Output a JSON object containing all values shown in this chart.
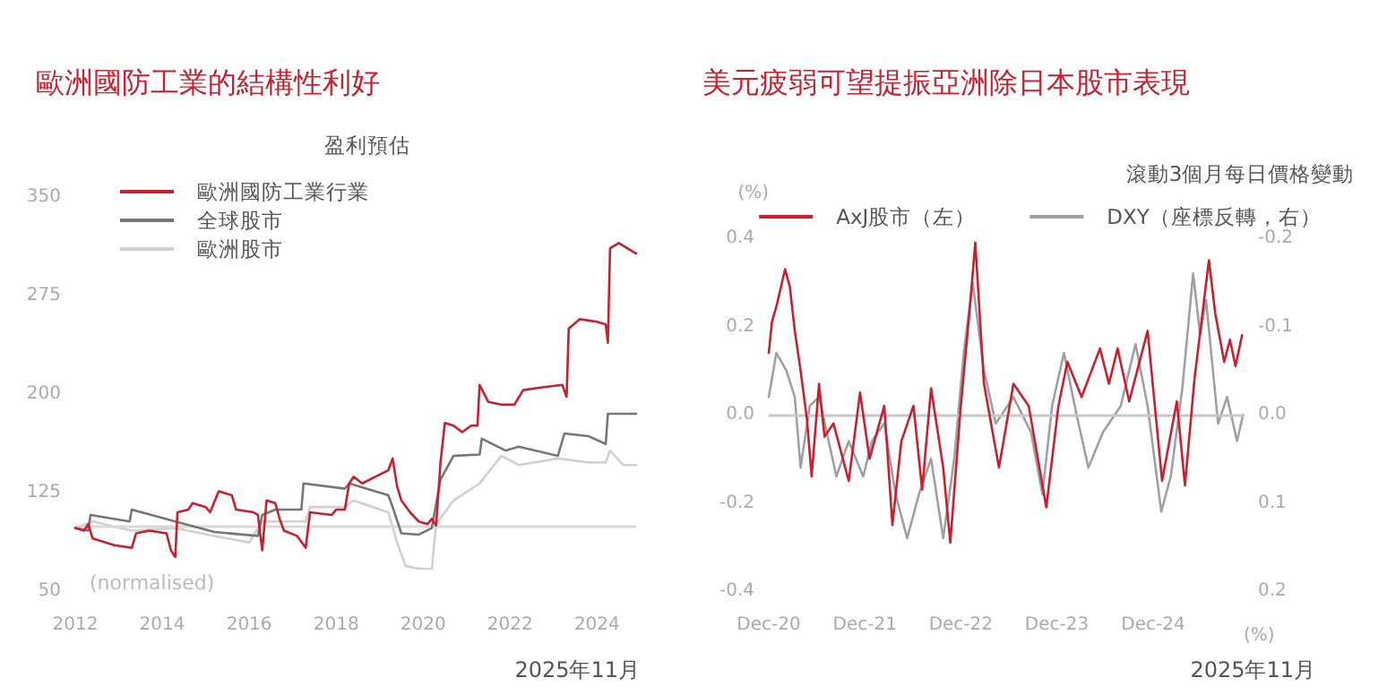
{
  "chart_data": [
    {
      "type": "line",
      "title": "歐洲國防工業的結構性利好",
      "subtitle": "盈利預估",
      "legend": "top left",
      "xlim": [
        2012,
        2024.9
      ],
      "xticks": [
        2012,
        2014,
        2016,
        2018,
        2020,
        2022,
        2024
      ],
      "ylim": [
        50,
        350
      ],
      "yticks": [
        50,
        125,
        200,
        275,
        350
      ],
      "ref_lines": [
        {
          "axis": "y",
          "value": 100,
          "color": "#d9d9d9"
        }
      ],
      "annotations": [
        "(normalised)",
        "2025年11月"
      ],
      "series": [
        {
          "name": "歐洲國防工業行業",
          "color": "#c8202f",
          "x": [
            2012.0,
            2012.2,
            2012.3,
            2012.4,
            2012.7,
            2012.9,
            2013.3,
            2013.4,
            2013.7,
            2014.1,
            2014.2,
            2014.3,
            2014.35,
            2014.6,
            2014.7,
            2015.0,
            2015.1,
            2015.3,
            2015.6,
            2015.7,
            2016.1,
            2016.2,
            2016.3,
            2016.4,
            2016.6,
            2016.7,
            2016.8,
            2017.1,
            2017.3,
            2017.4,
            2017.9,
            2018.0,
            2018.2,
            2018.3,
            2018.4,
            2018.6,
            2018.9,
            2019.2,
            2019.3,
            2019.4,
            2019.5,
            2019.7,
            2019.9,
            2020.1,
            2020.2,
            2020.3,
            2020.4,
            2020.5,
            2020.7,
            2020.9,
            2021.1,
            2021.25,
            2021.3,
            2021.5,
            2021.8,
            2022.1,
            2022.3,
            2022.7,
            2023.2,
            2023.3,
            2023.35,
            2023.6,
            2024.0,
            2024.2,
            2024.25,
            2024.3,
            2024.5,
            2024.9
          ],
          "values": [
            98,
            96,
            101,
            90,
            87,
            85,
            83,
            94,
            96,
            94,
            81,
            76,
            110,
            112,
            117,
            114,
            110,
            126,
            123,
            112,
            110,
            108,
            81,
            119,
            117,
            105,
            96,
            92,
            83,
            110,
            108,
            112,
            112,
            132,
            137,
            132,
            137,
            142,
            151,
            130,
            119,
            110,
            103,
            101,
            105,
            100,
            148,
            178,
            176,
            171,
            176,
            176,
            207,
            194,
            192,
            192,
            203,
            205,
            207,
            198,
            250,
            257,
            255,
            253,
            239,
            311,
            315,
            307
          ]
        },
        {
          "name": "全球股市",
          "color": "#767676",
          "x": [
            2012.0,
            2012.3,
            2012.35,
            2013.25,
            2013.3,
            2014.3,
            2015.2,
            2016.2,
            2016.3,
            2016.6,
            2017.2,
            2017.25,
            2018.2,
            2018.3,
            2019.2,
            2019.3,
            2019.5,
            2019.9,
            2020.2,
            2020.4,
            2020.7,
            2021.3,
            2021.35,
            2021.9,
            2022.2,
            2023.1,
            2023.25,
            2023.8,
            2024.2,
            2024.25,
            2024.9
          ],
          "values": [
            98,
            96,
            108,
            103,
            112,
            103,
            95,
            92,
            108,
            112,
            112,
            132,
            128,
            132,
            123,
            114,
            94,
            93,
            98,
            135,
            153,
            154,
            166,
            157,
            160,
            153,
            170,
            168,
            162,
            185,
            185
          ]
        },
        {
          "name": "歐洲股市",
          "color": "#d0d0d0",
          "x": [
            2012.0,
            2012.4,
            2013.3,
            2014.3,
            2015.2,
            2016.0,
            2016.3,
            2017.3,
            2017.4,
            2018.2,
            2018.4,
            2019.2,
            2019.4,
            2019.6,
            2019.9,
            2020.2,
            2020.3,
            2020.7,
            2021.3,
            2021.8,
            2022.2,
            2023.1,
            2023.8,
            2024.2,
            2024.3,
            2024.6,
            2024.9
          ],
          "values": [
            98,
            103,
            96,
            98,
            92,
            87,
            103,
            103,
            114,
            114,
            119,
            110,
            87,
            69,
            67,
            67,
            101,
            119,
            132,
            153,
            146,
            151,
            148,
            148,
            157,
            146,
            146
          ]
        }
      ]
    },
    {
      "type": "line",
      "title": "美元疲弱可望提振亞洲除日本股市表現",
      "subtitle": "滾動3個月每日價格變動",
      "legend": "top",
      "ylabel": "(%)",
      "y2label": "(%)",
      "xlim": [
        "2020-12-01",
        "2025-11-10"
      ],
      "xticks": [
        {
          "value": "2020-12-01",
          "label": "Dec-20"
        },
        {
          "value": "2021-12-01",
          "label": "Dec-21"
        },
        {
          "value": "2022-12-01",
          "label": "Dec-22"
        },
        {
          "value": "2023-12-01",
          "label": "Dec-23"
        },
        {
          "value": "2024-12-01",
          "label": "Dec-24"
        }
      ],
      "ylim": [
        -0.4,
        0.4
      ],
      "yticks": [
        -0.4,
        -0.2,
        {
          "value": 0,
          "label": "0.0"
        },
        0.2,
        0.4
      ],
      "y2lim": [
        0.2,
        -0.2
      ],
      "y2ticks": [
        -0.2,
        -0.1,
        {
          "value": 0,
          "label": "0.0"
        },
        0.1,
        0.2
      ],
      "ref_lines": [
        {
          "axis": "y",
          "value": 0,
          "color": "#c8c8c8"
        }
      ],
      "annotations": [
        "2025年11月"
      ],
      "series": [
        {
          "name": "AxJ股市（左）",
          "color": "#c8202f",
          "x": [
            "2020-12-01",
            "2020-12-13",
            "2021-01-01",
            "2021-02-01",
            "2021-02-19",
            "2021-03-10",
            "2021-04-01",
            "2021-04-25",
            "2021-05-13",
            "2021-06-10",
            "2021-07-01",
            "2021-08-04",
            "2021-10-01",
            "2021-11-13",
            "2021-12-19",
            "2022-02-13",
            "2022-03-16",
            "2022-04-19",
            "2022-06-04",
            "2022-07-07",
            "2022-08-10",
            "2022-09-25",
            "2022-10-22",
            "2022-12-01",
            "2023-01-04",
            "2023-01-25",
            "2023-02-27",
            "2023-04-25",
            "2023-06-19",
            "2023-08-16",
            "2023-10-22",
            "2023-12-07",
            "2024-01-10",
            "2024-03-04",
            "2024-05-13",
            "2024-06-16",
            "2024-07-19",
            "2024-09-01",
            "2024-11-10",
            "2025-01-04",
            "2025-03-01",
            "2025-04-01",
            "2025-05-07",
            "2025-07-01",
            "2025-07-25",
            "2025-08-28",
            "2025-09-19",
            "2025-10-10",
            "2025-11-04"
          ],
          "values": [
            0.14,
            0.21,
            0.25,
            0.33,
            0.29,
            0.19,
            0.1,
            -0.01,
            -0.14,
            0.07,
            -0.05,
            -0.02,
            -0.15,
            0.05,
            -0.1,
            0.02,
            -0.25,
            -0.06,
            0.02,
            -0.17,
            0.06,
            -0.12,
            -0.29,
            0.02,
            0.24,
            0.39,
            0.07,
            -0.12,
            0.07,
            0.02,
            -0.21,
            0.02,
            0.12,
            0.04,
            0.15,
            0.07,
            0.15,
            0.03,
            0.19,
            -0.15,
            0.03,
            -0.16,
            0.08,
            0.35,
            0.23,
            0.12,
            0.17,
            0.11,
            0.18
          ]
        },
        {
          "name": "DXY（座標反轉，右）",
          "color": "#a0a0a4",
          "axis": "y2",
          "x": [
            "2020-12-01",
            "2020-12-30",
            "2021-02-06",
            "2021-03-10",
            "2021-04-01",
            "2021-05-06",
            "2021-06-10",
            "2021-08-15",
            "2021-10-01",
            "2021-11-25",
            "2021-12-28",
            "2022-02-13",
            "2022-03-28",
            "2022-05-11",
            "2022-06-25",
            "2022-08-10",
            "2022-09-25",
            "2022-11-06",
            "2022-12-12",
            "2023-01-15",
            "2023-02-27",
            "2023-04-13",
            "2023-06-19",
            "2023-08-25",
            "2023-10-07",
            "2023-11-13",
            "2023-12-28",
            "2024-02-14",
            "2024-03-30",
            "2024-05-24",
            "2024-07-31",
            "2024-09-25",
            "2024-11-10",
            "2025-01-01",
            "2025-02-06",
            "2025-03-22",
            "2025-05-02",
            "2025-05-29",
            "2025-06-20",
            "2025-08-05",
            "2025-09-08",
            "2025-10-16",
            "2025-11-08"
          ],
          "values": [
            -0.02,
            -0.07,
            -0.05,
            -0.02,
            0.06,
            -0.01,
            -0.02,
            0.07,
            0.03,
            0.07,
            0.03,
            0.01,
            0.09,
            0.14,
            0.09,
            0.05,
            0.14,
            0.05,
            -0.07,
            -0.15,
            -0.05,
            0.01,
            -0.02,
            0.02,
            0.09,
            -0.01,
            -0.07,
            0.0,
            0.06,
            0.02,
            -0.01,
            -0.08,
            -0.01,
            0.11,
            0.07,
            -0.03,
            -0.16,
            -0.09,
            -0.13,
            0.01,
            -0.02,
            0.03,
            0.0
          ]
        }
      ]
    }
  ]
}
